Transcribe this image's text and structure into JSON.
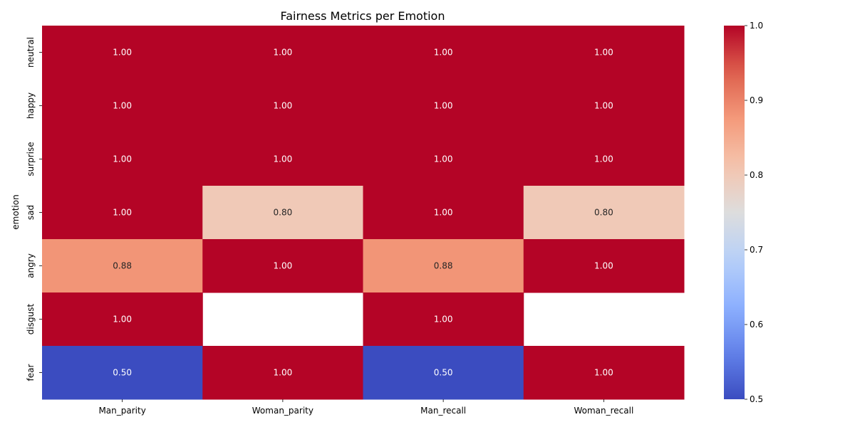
{
  "chart_data": {
    "type": "heatmap",
    "title": "Fairness Metrics per Emotion",
    "xlabel": "",
    "ylabel": "emotion",
    "columns": [
      "Man_parity",
      "Woman_parity",
      "Man_recall",
      "Woman_recall"
    ],
    "rows": [
      "neutral",
      "happy",
      "surprise",
      "sad",
      "angry",
      "disgust",
      "fear"
    ],
    "values": [
      [
        1.0,
        1.0,
        1.0,
        1.0
      ],
      [
        1.0,
        1.0,
        1.0,
        1.0
      ],
      [
        1.0,
        1.0,
        1.0,
        1.0
      ],
      [
        1.0,
        0.8,
        1.0,
        0.8
      ],
      [
        0.88,
        1.0,
        0.88,
        1.0
      ],
      [
        1.0,
        null,
        1.0,
        null
      ],
      [
        0.5,
        1.0,
        0.5,
        1.0
      ]
    ],
    "value_format": "0.00",
    "colormap": "coolwarm",
    "vmin": 0.5,
    "vmax": 1.0,
    "colorbar_ticks": [
      0.5,
      0.6,
      0.7,
      0.8,
      0.9,
      1.0
    ],
    "grid": false,
    "legend": "colorbar-right"
  }
}
